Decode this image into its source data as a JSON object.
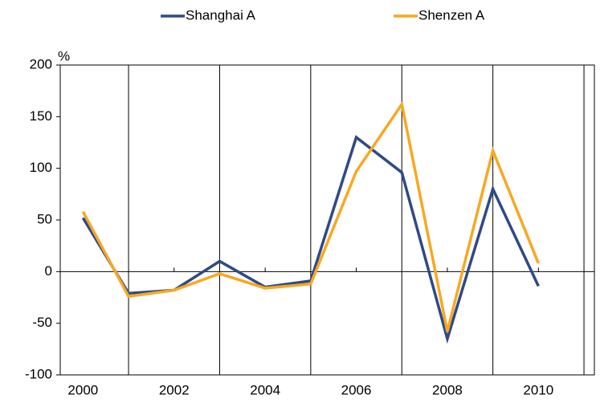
{
  "chart_data": {
    "type": "line",
    "y_unit": "%",
    "categories": [
      "2000",
      null,
      "2002",
      null,
      "2004",
      null,
      "2006",
      null,
      "2008",
      null,
      "2010"
    ],
    "series": [
      {
        "name": "Shanghai A",
        "color": "#2e4a87",
        "values": [
          52,
          -21,
          -18,
          10,
          -15,
          -9,
          130,
          96,
          -65,
          80,
          -14
        ]
      },
      {
        "name": "Shenzen A",
        "color": "#f7a823",
        "values": [
          58,
          -24,
          -18,
          -2,
          -16,
          -12,
          97,
          162,
          -58,
          117,
          8
        ]
      }
    ],
    "ylim": [
      -100,
      200
    ],
    "yticks": [
      -100,
      -50,
      0,
      50,
      100,
      150,
      200
    ]
  }
}
